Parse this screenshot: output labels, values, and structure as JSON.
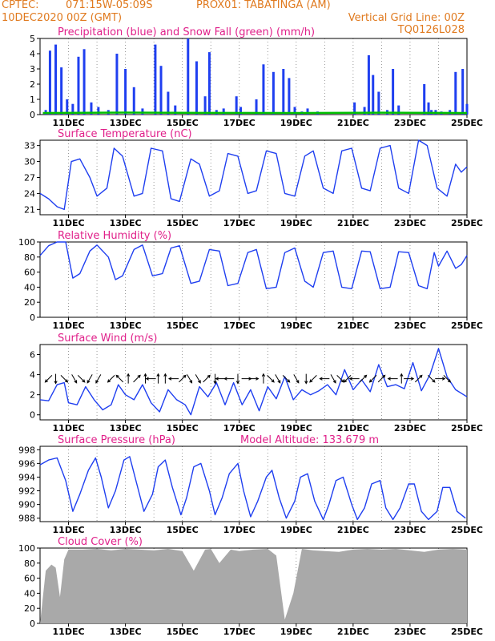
{
  "header": {
    "org": "CPTEC:",
    "coords": "071:15W-05:09S",
    "location": "PROX01: TABATINGA (AM)",
    "run_date": "10DEC2020 00Z (GMT)",
    "grid_note": "Vertical Grid Line: 00Z",
    "model_code": "TQ0126L028"
  },
  "colors": {
    "header_text": "#e07a1f",
    "panel_title": "#e0208a",
    "precip": "#1f3ff0",
    "snow": "#00c000",
    "line": "#1f3ff0",
    "cloud": "#a9a9a9",
    "arrow": "#000000"
  },
  "chart_data": [
    {
      "id": "precip",
      "type": "bar",
      "title": "Precipitation (blue) and Snow Fall (green) (mm/h)",
      "ylim": [
        0,
        5
      ],
      "yticks": [
        0,
        1,
        2,
        3,
        4,
        5
      ],
      "x_days": [
        "11DEC",
        "13DEC",
        "15DEC",
        "17DEC",
        "19DEC",
        "21DEC",
        "23DEC",
        "25DEC"
      ],
      "series": [
        {
          "t": [
            0.2,
            0.35,
            0.55,
            0.75,
            0.95,
            1.15,
            1.35,
            1.55,
            1.8,
            2.05,
            2.4,
            2.7,
            3.0,
            3.3,
            3.6,
            4.05,
            4.25,
            4.5,
            4.75,
            5.2,
            5.5,
            5.8,
            5.95,
            6.2,
            6.45,
            6.9,
            7.05,
            7.6,
            7.85,
            8.2,
            8.55,
            8.75,
            8.95,
            9.2,
            9.4,
            9.75,
            11.05,
            11.4,
            11.55,
            11.7,
            11.9,
            12.2,
            12.4,
            12.6,
            13.5,
            13.65,
            13.75,
            13.9,
            14.1,
            14.4,
            14.6,
            14.85,
            15.0
          ],
          "v": [
            0.3,
            4.2,
            4.6,
            3.1,
            1.0,
            0.7,
            3.8,
            4.3,
            0.8,
            0.5,
            0.3,
            4.0,
            3.0,
            1.8,
            0.4,
            4.6,
            3.2,
            1.5,
            0.6,
            5.0,
            3.5,
            1.2,
            4.1,
            0.3,
            0.4,
            1.2,
            0.5,
            1.0,
            3.3,
            2.8,
            3.0,
            2.4,
            0.5,
            0.2,
            0.4,
            0.2,
            0.8,
            0.5,
            3.9,
            2.6,
            1.5,
            0.3,
            3.0,
            0.6,
            2.0,
            0.8,
            0.3,
            0.3,
            0.2,
            0.3,
            2.8,
            3.0,
            0.7
          ]
        },
        {
          "t": [
            0.1,
            3.0,
            6.0,
            9.0,
            12.0,
            15.0
          ],
          "v": [
            0.05,
            0.08,
            0.06,
            0.05,
            0.07,
            0.05
          ]
        }
      ]
    },
    {
      "id": "temp",
      "type": "line",
      "title": "Surface Temperature (nC)",
      "ylim": [
        20,
        34
      ],
      "yticks": [
        21,
        24,
        27,
        30,
        33
      ],
      "x_days": [
        "11DEC",
        "13DEC",
        "15DEC",
        "17DEC",
        "19DEC",
        "21DEC",
        "23DEC",
        "25DEC"
      ],
      "series": [
        {
          "t": [
            0.0,
            0.3,
            0.6,
            0.85,
            1.1,
            1.4,
            1.75,
            2.0,
            2.35,
            2.6,
            2.9,
            3.3,
            3.6,
            3.9,
            4.3,
            4.6,
            4.9,
            5.3,
            5.6,
            5.95,
            6.3,
            6.6,
            6.95,
            7.3,
            7.6,
            7.95,
            8.3,
            8.6,
            8.95,
            9.3,
            9.6,
            9.95,
            10.3,
            10.6,
            10.95,
            11.3,
            11.6,
            11.95,
            12.3,
            12.6,
            12.95,
            13.3,
            13.6,
            13.95,
            14.3,
            14.6,
            14.8,
            15.0
          ],
          "v": [
            24.0,
            23.0,
            21.5,
            21.0,
            30.0,
            30.5,
            27.0,
            23.5,
            25.0,
            32.5,
            31.0,
            23.5,
            24.0,
            32.5,
            32.0,
            23.0,
            22.5,
            30.5,
            29.5,
            23.5,
            24.5,
            31.5,
            31.0,
            24.0,
            24.5,
            32.0,
            31.5,
            24.0,
            23.5,
            31.0,
            32.0,
            25.0,
            24.0,
            32.0,
            32.5,
            25.0,
            24.5,
            32.5,
            33.0,
            25.0,
            24.0,
            34.0,
            33.0,
            25.0,
            23.5,
            29.5,
            28.0,
            29.0
          ]
        }
      ]
    },
    {
      "id": "rh",
      "type": "line",
      "title": "Relative Humidity (%)",
      "ylim": [
        0,
        100
      ],
      "yticks": [
        0,
        20,
        40,
        60,
        80,
        100
      ],
      "x_days": [
        "11DEC",
        "13DEC",
        "15DEC",
        "17DEC",
        "19DEC",
        "21DEC",
        "23DEC",
        "25DEC"
      ],
      "series": [
        {
          "t": [
            0.0,
            0.3,
            0.6,
            0.9,
            1.15,
            1.4,
            1.75,
            2.0,
            2.4,
            2.65,
            2.9,
            3.3,
            3.6,
            3.95,
            4.3,
            4.6,
            4.9,
            5.3,
            5.6,
            5.95,
            6.3,
            6.6,
            6.95,
            7.3,
            7.6,
            7.95,
            8.3,
            8.6,
            8.95,
            9.3,
            9.6,
            9.95,
            10.3,
            10.6,
            10.95,
            11.3,
            11.6,
            11.95,
            12.3,
            12.6,
            12.95,
            13.3,
            13.6,
            13.85,
            14.0,
            14.3,
            14.6,
            14.8,
            15.0
          ],
          "v": [
            82.0,
            95.0,
            100.0,
            100.0,
            52.0,
            58.0,
            88.0,
            96.0,
            80.0,
            50.0,
            55.0,
            90.0,
            96.0,
            55.0,
            58.0,
            92.0,
            95.0,
            45.0,
            48.0,
            90.0,
            88.0,
            42.0,
            45.0,
            86.0,
            90.0,
            38.0,
            40.0,
            86.0,
            92.0,
            48.0,
            40.0,
            86.0,
            88.0,
            40.0,
            38.0,
            88.0,
            87.0,
            38.0,
            40.0,
            87.0,
            86.0,
            42.0,
            38.0,
            86.0,
            68.0,
            88.0,
            65.0,
            70.0,
            82.0
          ]
        }
      ]
    },
    {
      "id": "wind",
      "type": "line",
      "title": "Surface Wind (m/s)",
      "ylim": [
        -0.5,
        7
      ],
      "yticks": [
        0,
        2,
        4,
        6
      ],
      "x_days": [
        "11DEC",
        "13DEC",
        "15DEC",
        "17DEC",
        "19DEC",
        "21DEC",
        "23DEC",
        "25DEC"
      ],
      "series": [
        {
          "t": [
            0.0,
            0.3,
            0.6,
            0.85,
            1.0,
            1.3,
            1.6,
            1.9,
            2.2,
            2.5,
            2.75,
            3.0,
            3.3,
            3.6,
            3.9,
            4.2,
            4.5,
            4.8,
            5.1,
            5.3,
            5.6,
            5.9,
            6.2,
            6.5,
            6.8,
            7.1,
            7.4,
            7.7,
            8.0,
            8.3,
            8.6,
            8.9,
            9.2,
            9.5,
            9.8,
            10.1,
            10.4,
            10.7,
            11.0,
            11.3,
            11.6,
            11.9,
            12.2,
            12.5,
            12.8,
            13.1,
            13.4,
            13.7,
            14.0,
            14.3,
            14.6,
            15.0
          ],
          "v": [
            1.5,
            1.4,
            3.0,
            3.2,
            1.2,
            1.0,
            2.8,
            1.5,
            0.5,
            1.0,
            3.0,
            2.0,
            1.5,
            3.0,
            1.2,
            0.3,
            2.5,
            1.5,
            1.0,
            0.0,
            2.8,
            1.8,
            3.2,
            1.0,
            3.2,
            1.0,
            2.5,
            0.4,
            2.8,
            1.6,
            3.8,
            1.5,
            2.5,
            2.0,
            2.4,
            3.0,
            2.0,
            4.5,
            2.5,
            3.5,
            2.3,
            5.0,
            2.8,
            3.0,
            2.6,
            5.2,
            2.4,
            4.0,
            6.6,
            3.8,
            2.5,
            1.8
          ]
        },
        {
          "t": [
            0.3,
            0.55,
            0.85,
            1.2,
            1.45,
            1.75,
            2.05,
            2.5,
            2.8,
            3.1,
            3.4,
            3.7,
            3.9,
            4.15,
            4.4,
            4.7,
            5.0,
            5.25,
            5.55,
            5.85,
            6.15,
            6.35,
            6.65,
            6.95,
            7.25,
            7.5,
            7.85,
            8.1,
            8.35,
            8.65,
            9.0,
            9.35,
            9.6,
            10.0,
            10.3,
            10.55,
            10.8,
            11.05,
            11.35,
            11.7,
            12.0,
            12.4,
            12.7,
            12.95,
            13.3,
            13.75,
            14.05,
            14.3
          ],
          "dir": [
            225,
            270,
            315,
            300,
            315,
            240,
            240,
            225,
            135,
            90,
            45,
            90,
            180,
            90,
            90,
            180,
            45,
            300,
            300,
            45,
            270,
            180,
            180,
            270,
            0,
            0,
            90,
            315,
            300,
            315,
            300,
            270,
            225,
            180,
            300,
            315,
            225,
            180,
            45,
            225,
            45,
            180,
            90,
            0,
            45,
            315,
            0,
            315
          ],
          "y": 3.6
        }
      ]
    },
    {
      "id": "pressure",
      "type": "line",
      "title": "Surface Pressure (hPa)",
      "annotation": "Model Altitude: 133.679 m",
      "ylim": [
        987.5,
        998.5
      ],
      "yticks": [
        988,
        990,
        992,
        994,
        996,
        998
      ],
      "x_days": [
        "11DEC",
        "13DEC",
        "15DEC",
        "17DEC",
        "19DEC",
        "21DEC",
        "23DEC",
        "25DEC"
      ],
      "series": [
        {
          "t": [
            0.0,
            0.3,
            0.6,
            0.9,
            1.15,
            1.4,
            1.7,
            1.95,
            2.15,
            2.4,
            2.65,
            2.95,
            3.15,
            3.4,
            3.65,
            3.95,
            4.15,
            4.4,
            4.65,
            4.95,
            5.15,
            5.4,
            5.65,
            5.95,
            6.15,
            6.4,
            6.65,
            6.95,
            7.15,
            7.4,
            7.65,
            7.95,
            8.15,
            8.4,
            8.65,
            8.95,
            9.15,
            9.4,
            9.65,
            9.95,
            10.15,
            10.4,
            10.65,
            10.95,
            11.15,
            11.4,
            11.65,
            11.95,
            12.15,
            12.4,
            12.65,
            12.95,
            13.15,
            13.4,
            13.65,
            13.95,
            14.15,
            14.4,
            14.65,
            14.95
          ],
          "v": [
            995.8,
            996.5,
            996.8,
            993.5,
            989.0,
            991.5,
            995.0,
            996.8,
            994.0,
            989.5,
            992.0,
            996.5,
            997.0,
            993.0,
            989.0,
            991.5,
            995.5,
            996.5,
            992.5,
            988.5,
            991.0,
            995.5,
            996.0,
            992.0,
            988.5,
            991.0,
            994.5,
            996.0,
            992.0,
            988.2,
            990.5,
            994.0,
            995.0,
            991.0,
            988.0,
            990.5,
            994.0,
            994.5,
            990.5,
            987.8,
            990.0,
            993.5,
            994.0,
            990.0,
            987.8,
            989.5,
            993.0,
            993.5,
            989.5,
            987.8,
            989.5,
            993.0,
            993.0,
            989.0,
            987.8,
            989.0,
            992.5,
            992.5,
            989.0,
            988.0
          ]
        }
      ]
    },
    {
      "id": "cloud",
      "type": "bar",
      "title": "Cloud Cover (%)",
      "ylim": [
        0,
        100
      ],
      "yticks": [
        0,
        20,
        40,
        60,
        80,
        100
      ],
      "x_days": [
        "11DEC",
        "13DEC",
        "15DEC",
        "17DEC",
        "19DEC",
        "21DEC",
        "23DEC",
        "25DEC"
      ],
      "series": [
        {
          "t": [
            0.0,
            0.2,
            0.4,
            0.55,
            0.7,
            0.85,
            1.0,
            1.5,
            2.0,
            2.5,
            3.0,
            3.5,
            4.0,
            4.5,
            5.0,
            5.4,
            5.8,
            6.0,
            6.3,
            6.7,
            7.0,
            7.5,
            8.0,
            8.3,
            8.6,
            8.9,
            9.2,
            9.6,
            10.0,
            10.5,
            11.0,
            11.5,
            12.0,
            12.5,
            13.0,
            13.5,
            14.0,
            14.5,
            15.0
          ],
          "v": [
            0.0,
            70.0,
            78.0,
            74.0,
            35.0,
            85.0,
            98.0,
            98.0,
            99.0,
            97.0,
            99.0,
            98.0,
            97.0,
            99.0,
            96.0,
            70.0,
            98.0,
            99.0,
            80.0,
            98.0,
            96.0,
            98.0,
            99.0,
            90.0,
            5.0,
            40.0,
            99.0,
            97.0,
            96.0,
            95.0,
            98.0,
            99.0,
            98.0,
            99.0,
            97.0,
            95.0,
            98.0,
            99.0,
            98.0
          ]
        }
      ]
    }
  ]
}
